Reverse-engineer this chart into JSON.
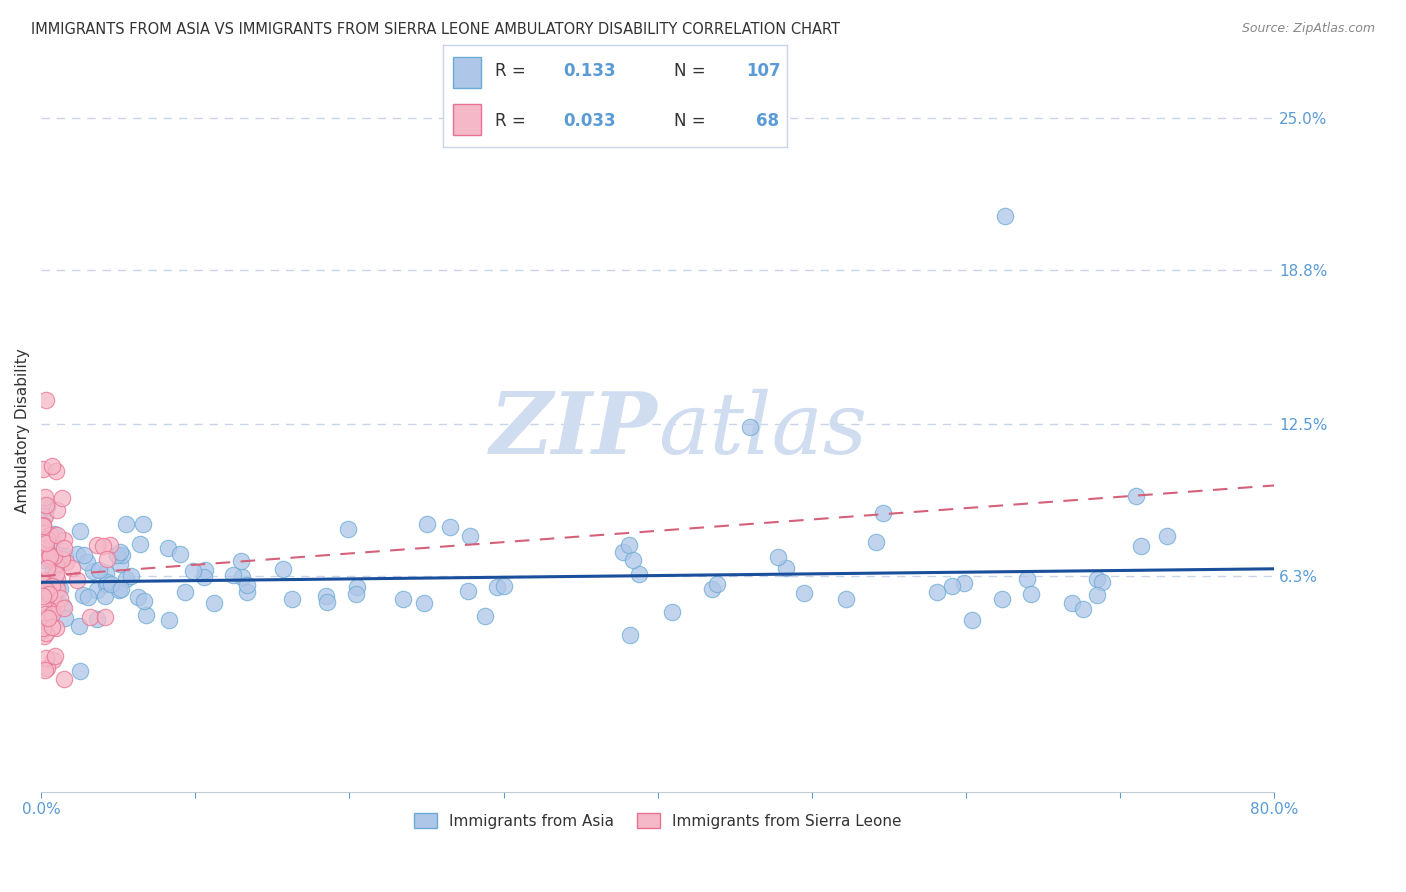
{
  "title": "IMMIGRANTS FROM ASIA VS IMMIGRANTS FROM SIERRA LEONE AMBULATORY DISABILITY CORRELATION CHART",
  "source": "Source: ZipAtlas.com",
  "ylabel": "Ambulatory Disability",
  "xlim": [
    0,
    0.8
  ],
  "ylim": [
    -0.025,
    0.27
  ],
  "yticks": [
    0.063,
    0.125,
    0.188,
    0.25
  ],
  "ytick_labels": [
    "6.3%",
    "12.5%",
    "18.8%",
    "25.0%"
  ],
  "asia_R": 0.133,
  "asia_N": 107,
  "sl_R": 0.033,
  "sl_N": 68,
  "asia_color": "#aec6e8",
  "asia_edge_color": "#6aaad4",
  "sl_color": "#f5b8c8",
  "sl_edge_color": "#e87090",
  "trend_asia_color": "#1a4f9c",
  "trend_sl_color": "#d4607a",
  "watermark_color": "#d0ddf0",
  "background_color": "#ffffff",
  "grid_color": "#c8d4e8",
  "title_color": "#333333",
  "axis_label_color": "#333333",
  "tick_color": "#5b9bd5",
  "legend_border_color": "#c8d4e8",
  "legend_text_color": "#333333",
  "legend_value_color": "#5b9bd5",
  "asia_trend_x0": 0.0,
  "asia_trend_y0": 0.0605,
  "asia_trend_x1": 0.8,
  "asia_trend_y1": 0.066,
  "sl_trend_x0": 0.0,
  "sl_trend_y0": 0.063,
  "sl_trend_x1": 0.8,
  "sl_trend_y1": 0.1
}
